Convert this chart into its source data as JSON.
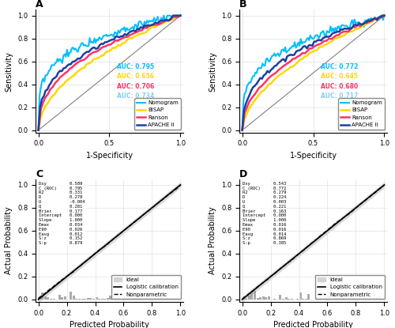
{
  "panel_A": {
    "title": "A",
    "auc_nomogram": 0.795,
    "auc_bisap": 0.656,
    "auc_ranson": 0.706,
    "auc_apache": 0.734,
    "color_nomogram": "#00BFFF",
    "color_bisap": "#FFD700",
    "color_ranson": "#FF3366",
    "color_apache": "#1E3FA0",
    "auc_text_colors": [
      "#00BFFF",
      "#FFD700",
      "#FF3366",
      "#87CEEB"
    ]
  },
  "panel_B": {
    "title": "B",
    "auc_nomogram": 0.772,
    "auc_bisap": 0.645,
    "auc_ranson": 0.68,
    "auc_apache": 0.717,
    "color_nomogram": "#00BFFF",
    "color_bisap": "#FFD700",
    "color_ranson": "#FF3366",
    "color_apache": "#1E3FA0",
    "auc_text_colors": [
      "#00BFFF",
      "#FFD700",
      "#FF3366",
      "#87CEEB"
    ]
  },
  "panel_C": {
    "title": "C",
    "stats_labels": [
      "Dxy",
      "C (ROC)",
      "R2",
      "D",
      "U",
      "Q",
      "Brier",
      "Intercept",
      "Slope",
      "Emax",
      "E90",
      "Eavg",
      "S:z",
      "S:p"
    ],
    "stats_values": [
      0.589,
      0.795,
      0.331,
      0.278,
      -0.004,
      0.281,
      0.177,
      0.0,
      1.0,
      0.034,
      0.026,
      0.012,
      0.152,
      0.879
    ]
  },
  "panel_D": {
    "title": "D",
    "stats_labels": [
      "Dxy",
      "C (ROC)",
      "R2",
      "D",
      "U",
      "Q",
      "Brier",
      "Intercept",
      "Slope",
      "Emax",
      "E90",
      "Eavg",
      "S:z",
      "S:p"
    ],
    "stats_values": [
      0.543,
      0.772,
      0.279,
      0.224,
      0.003,
      0.221,
      0.163,
      0.0,
      1.0,
      0.016,
      0.016,
      0.014,
      0.869,
      0.385
    ]
  },
  "background_color": "#FFFFFF",
  "grid_color": "#E0E0E0",
  "legend_labels": [
    "Nomogram",
    "BISAP",
    "Ranson",
    "APACHE II"
  ],
  "xlabel_roc": "1-Specificity",
  "ylabel_roc": "Sensitivity",
  "xlabel_cal": "Predicted Probability",
  "ylabel_cal": "Actual Probability"
}
